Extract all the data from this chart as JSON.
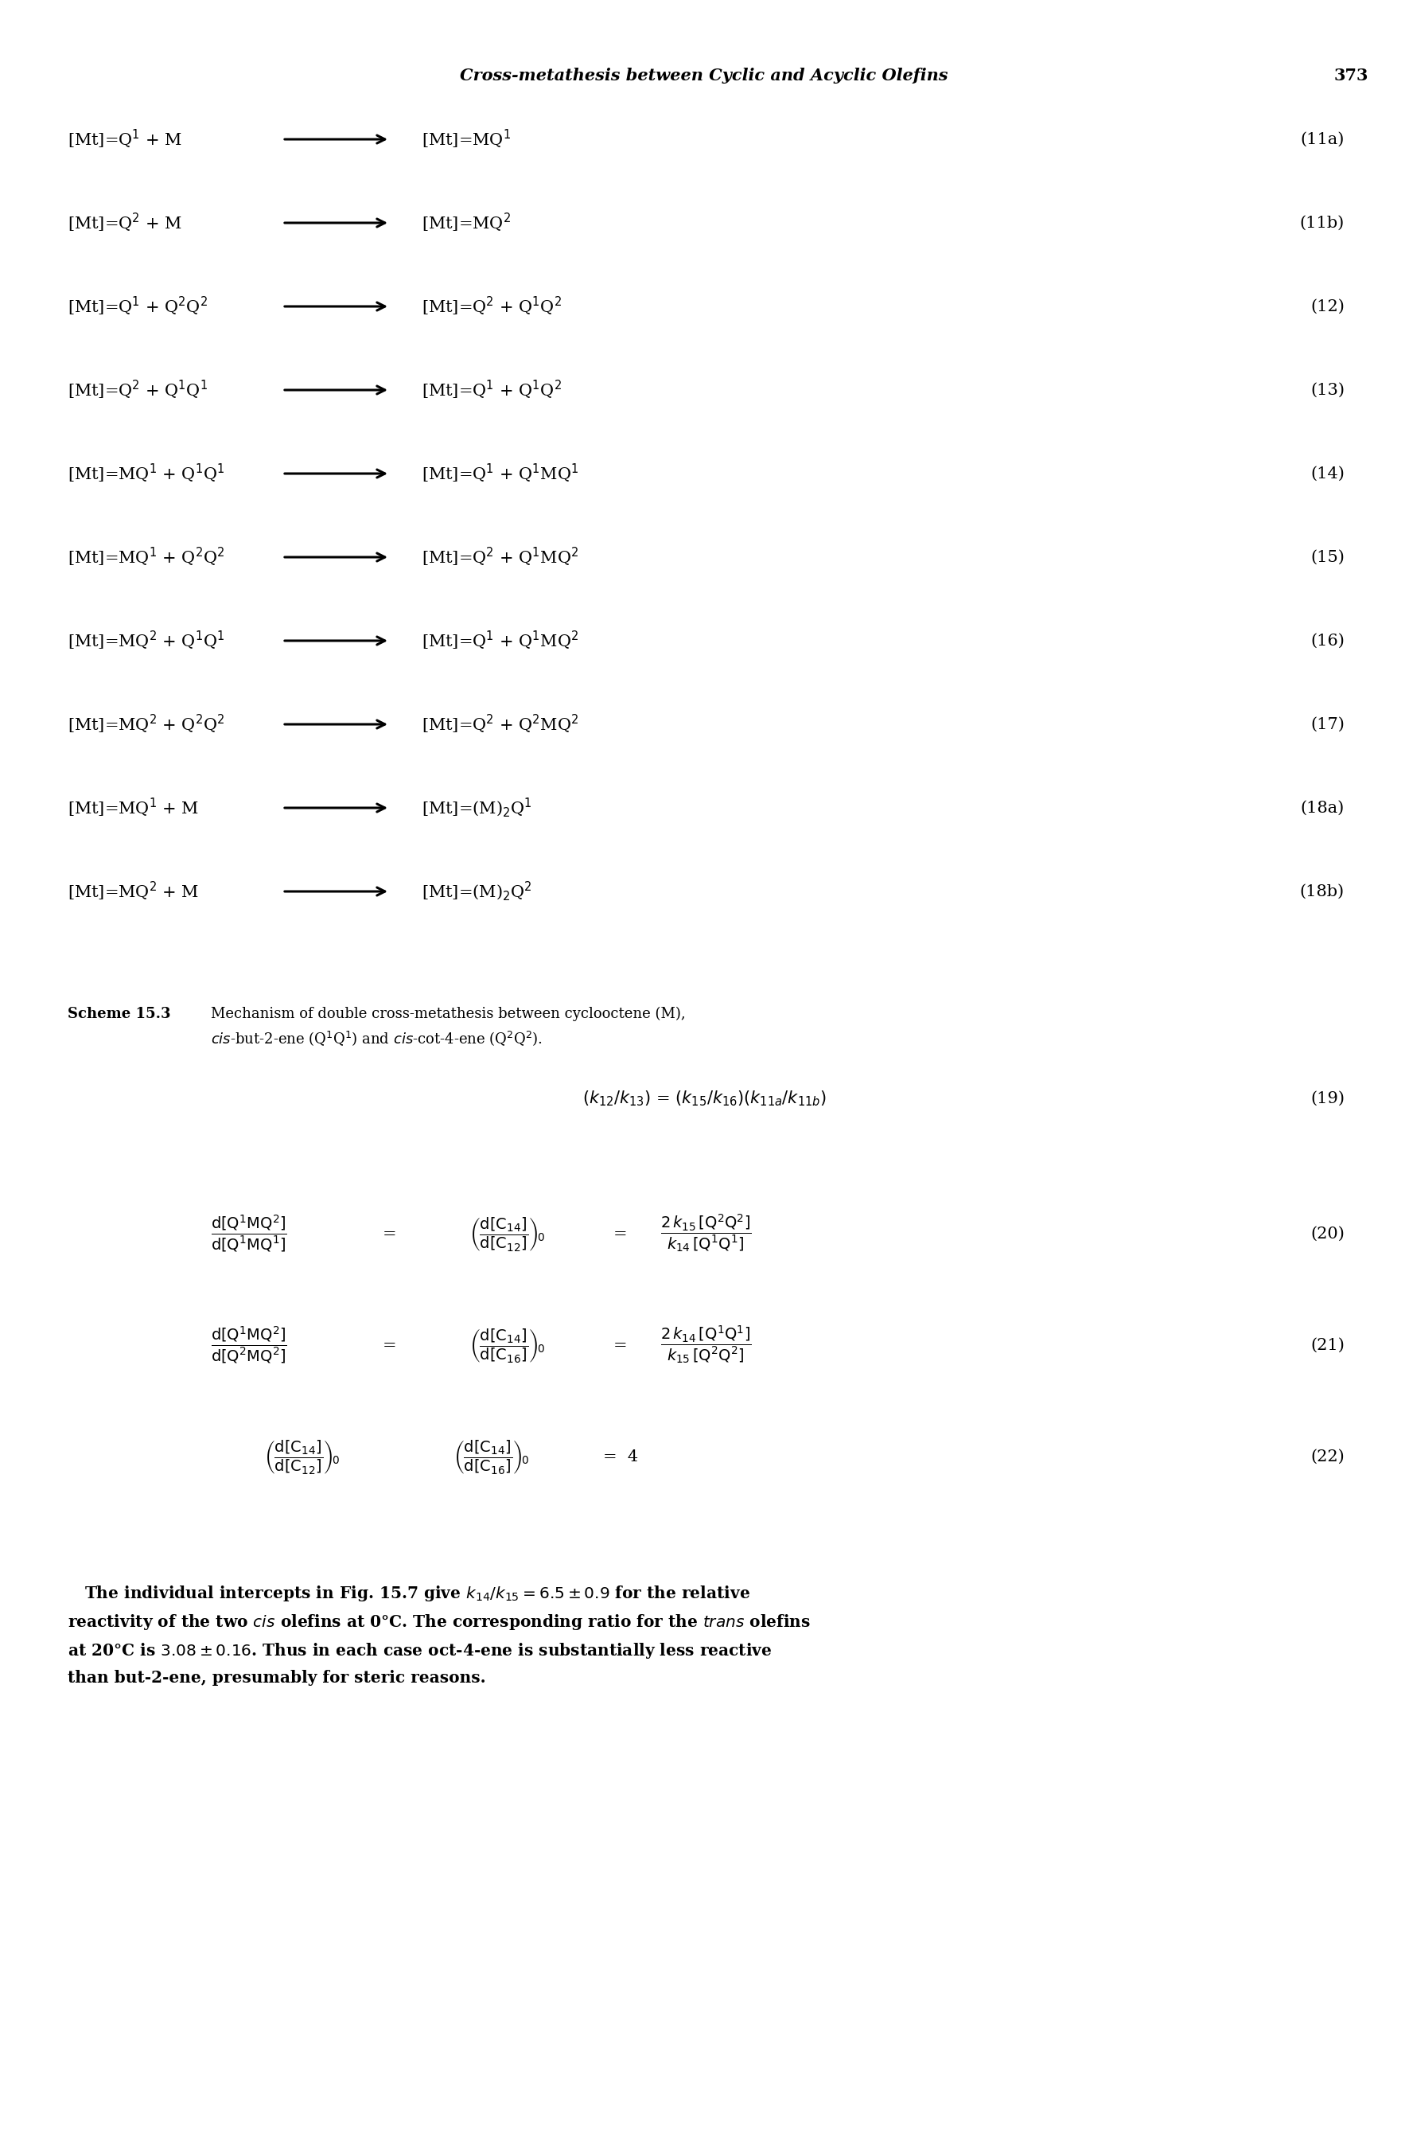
{
  "title_italic": "Cross-metathesis between Cyclic and Acyclic Olefins",
  "page_number": "373",
  "reactions": [
    {
      "left": "[Mt]=Q$^1$ + M",
      "right": "[Mt]=MQ$^1$",
      "label": "(11a)"
    },
    {
      "left": "[Mt]=Q$^2$ + M",
      "right": "[Mt]=MQ$^2$",
      "label": "(11b)"
    },
    {
      "left": "[Mt]=Q$^1$ + Q$^2$Q$^2$",
      "right": "[Mt]=Q$^2$ + Q$^1$Q$^2$",
      "label": "(12)"
    },
    {
      "left": "[Mt]=Q$^2$ + Q$^1$Q$^1$",
      "right": "[Mt]=Q$^1$ + Q$^1$Q$^2$",
      "label": "(13)"
    },
    {
      "left": "[Mt]=MQ$^1$ + Q$^1$Q$^1$",
      "right": "[Mt]=Q$^1$ + Q$^1$MQ$^1$",
      "label": "(14)"
    },
    {
      "left": "[Mt]=MQ$^1$ + Q$^2$Q$^2$",
      "right": "[Mt]=Q$^2$ + Q$^1$MQ$^2$",
      "label": "(15)"
    },
    {
      "left": "[Mt]=MQ$^2$ + Q$^1$Q$^1$",
      "right": "[Mt]=Q$^1$ + Q$^1$MQ$^2$",
      "label": "(16)"
    },
    {
      "left": "[Mt]=MQ$^2$ + Q$^2$Q$^2$",
      "right": "[Mt]=Q$^2$ + Q$^2$MQ$^2$",
      "label": "(17)"
    },
    {
      "left": "[Mt]=MQ$^1$ + M",
      "right": "[Mt]=(M)$_2$Q$^1$",
      "label": "(18a)"
    },
    {
      "left": "[Mt]=MQ$^2$ + M",
      "right": "[Mt]=(M)$_2$Q$^2$",
      "label": "(18b)"
    }
  ],
  "bg_color": "#ffffff",
  "text_color": "#000000"
}
